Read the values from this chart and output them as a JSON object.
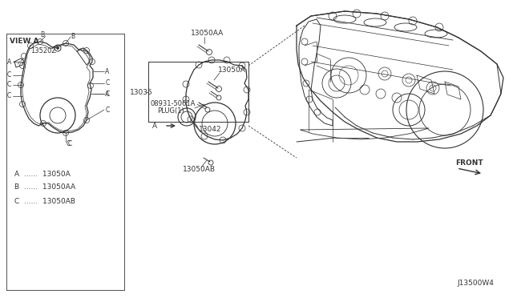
{
  "bg_color": "#ffffff",
  "line_color": "#333333",
  "diagram_id": "J13500W4",
  "front_label": "FRONT",
  "view_label": "VIEW A",
  "legend": [
    [
      "A",
      "13050A"
    ],
    [
      "B",
      "13050AA"
    ],
    [
      "C",
      "13050AB"
    ]
  ],
  "font_size": 6.5,
  "figsize": [
    6.4,
    3.72
  ],
  "dpi": 100
}
